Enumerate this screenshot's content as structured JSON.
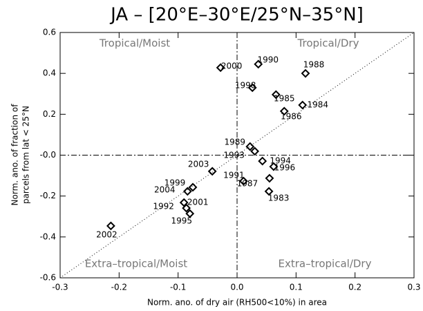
{
  "chart_data": {
    "type": "scatter",
    "title": "JA – [20°E–30°E/25°N–35°N]",
    "x_label": "Norm. ano. of dry air (RH500<10%) in area",
    "y_label": [
      "Norm. ano. of fraction of",
      "parcels from lat < 25°N"
    ],
    "annotations": [
      "Tropical/Moist",
      "Tropical/Dry",
      "Extra–tropical/Moist",
      "Extra–tropical/Dry"
    ],
    "labels": [
      "2000",
      "1990",
      "1988",
      "1998",
      "1985",
      "1984",
      "1986",
      "1989",
      "1993",
      "1994",
      "1996",
      "2003",
      "1991",
      "1987",
      "1983",
      "1999",
      "2004",
      "1992",
      "2001",
      "1995",
      "2002"
    ],
    "x": [
      -0.028,
      0.036,
      0.116,
      0.026,
      0.066,
      0.111,
      0.08,
      0.022,
      0.03,
      0.043,
      0.062,
      -0.042,
      0.011,
      0.055,
      0.054,
      -0.075,
      -0.084,
      -0.086,
      -0.09,
      -0.08,
      -0.214
    ],
    "values": [
      0.428,
      0.445,
      0.4,
      0.33,
      0.296,
      0.245,
      0.215,
      0.042,
      0.019,
      -0.029,
      -0.056,
      -0.079,
      -0.127,
      -0.113,
      -0.177,
      -0.157,
      -0.177,
      -0.259,
      -0.232,
      -0.286,
      -0.346
    ],
    "color": "#000000",
    "fit_line": {
      "x": [
        -0.3,
        0.3
      ],
      "y": [
        -0.6,
        0.6
      ]
    },
    "xlim": [
      -0.3,
      0.3
    ],
    "ylim": [
      -0.6,
      0.6
    ],
    "xticks": [
      -0.3,
      -0.2,
      -0.1,
      {
        "value": 0,
        "label": "0.0"
      },
      0.1,
      0.2,
      0.3
    ],
    "yticks": [
      -0.6,
      -0.4,
      -0.2,
      {
        "value": 0,
        "label": "-0.0"
      },
      0.2,
      0.4,
      0.6
    ]
  }
}
